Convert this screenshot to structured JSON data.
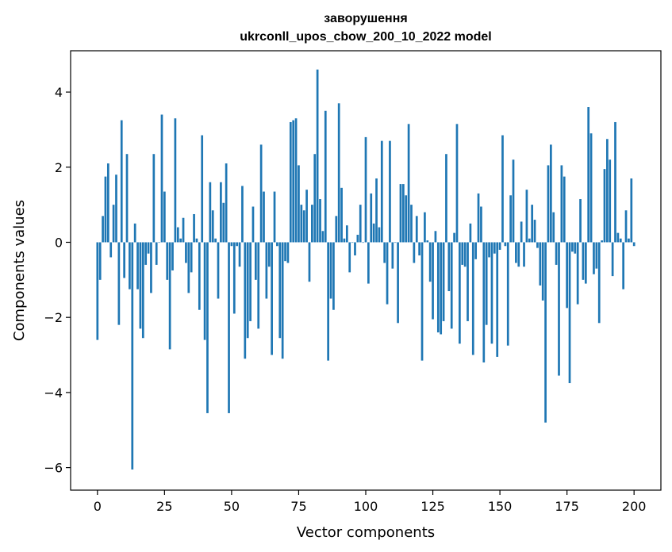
{
  "chart_data": {
    "type": "bar",
    "title": "заворушення",
    "subtitle": "ukrconll_upos_cbow_200_10_2022 model",
    "xlabel": "Vector components",
    "ylabel": "Components values",
    "xlim": [
      -10,
      210
    ],
    "ylim": [
      -6.6,
      5.1
    ],
    "xticks": [
      0,
      25,
      50,
      75,
      100,
      125,
      150,
      175,
      200
    ],
    "yticks": [
      -6,
      -4,
      -2,
      0,
      2,
      4
    ],
    "ytick_labels": [
      "−6",
      "−4",
      "−2",
      "0",
      "2",
      "4"
    ],
    "bar_color": "#1f77b4",
    "grid": false,
    "legend": "none",
    "values": [
      -2.6,
      -1.0,
      0.7,
      1.75,
      2.1,
      -0.4,
      1.0,
      1.8,
      -2.2,
      3.25,
      -0.95,
      2.35,
      -1.25,
      -6.05,
      0.5,
      -1.25,
      -2.3,
      -2.55,
      -0.6,
      -0.3,
      -1.35,
      2.35,
      -0.6,
      0.0,
      3.4,
      1.35,
      -1.0,
      -2.85,
      -0.75,
      3.3,
      0.4,
      0.1,
      0.65,
      -0.55,
      -1.35,
      -0.8,
      0.75,
      0.1,
      -1.8,
      2.85,
      -2.6,
      -4.55,
      1.6,
      0.85,
      0.1,
      -1.5,
      1.6,
      1.05,
      2.1,
      -4.55,
      -0.1,
      -1.9,
      -0.1,
      -0.65,
      1.5,
      -3.1,
      -2.55,
      -2.1,
      0.95,
      -1.0,
      -2.3,
      2.6,
      1.35,
      -1.5,
      -0.65,
      -3.0,
      1.35,
      -0.1,
      -2.55,
      -3.1,
      -0.5,
      -0.55,
      3.2,
      3.25,
      3.3,
      2.05,
      1.0,
      0.85,
      1.4,
      -1.05,
      1.0,
      2.35,
      4.6,
      1.15,
      0.3,
      3.5,
      -3.15,
      -1.5,
      -1.8,
      0.7,
      3.7,
      1.45,
      0.1,
      0.45,
      -0.8,
      0.0,
      -0.35,
      0.2,
      1.0,
      0.0,
      2.8,
      -1.1,
      1.3,
      0.5,
      1.7,
      0.4,
      2.7,
      -0.55,
      -1.65,
      2.7,
      -0.7,
      0.0,
      -2.15,
      1.55,
      1.55,
      1.25,
      3.15,
      1.0,
      -0.55,
      0.7,
      -0.35,
      -3.15,
      0.8,
      0.05,
      -1.05,
      -2.05,
      0.3,
      -2.4,
      -2.45,
      -2.1,
      2.35,
      -1.3,
      -2.3,
      0.25,
      3.15,
      -2.7,
      -0.6,
      -0.65,
      -2.1,
      0.5,
      -3.0,
      -0.45,
      1.3,
      0.95,
      -3.2,
      -2.2,
      -0.4,
      -2.7,
      -0.3,
      -3.05,
      -0.2,
      2.85,
      -0.1,
      -2.75,
      1.25,
      2.2,
      -0.55,
      -0.65,
      0.55,
      -0.65,
      1.4,
      0.1,
      1.0,
      0.6,
      -0.15,
      -1.15,
      -1.55,
      -4.8,
      2.05,
      2.6,
      0.8,
      -0.6,
      -3.55,
      2.05,
      1.75,
      -1.75,
      -3.75,
      -0.25,
      -0.3,
      -1.65,
      1.15,
      -1.0,
      -1.1,
      3.6,
      2.9,
      -0.85,
      -0.7,
      -2.15,
      0.05,
      1.95,
      2.75,
      2.2,
      -0.9,
      3.2,
      0.25,
      0.1,
      -1.25,
      0.85,
      0.1,
      1.7,
      -0.1
    ]
  }
}
